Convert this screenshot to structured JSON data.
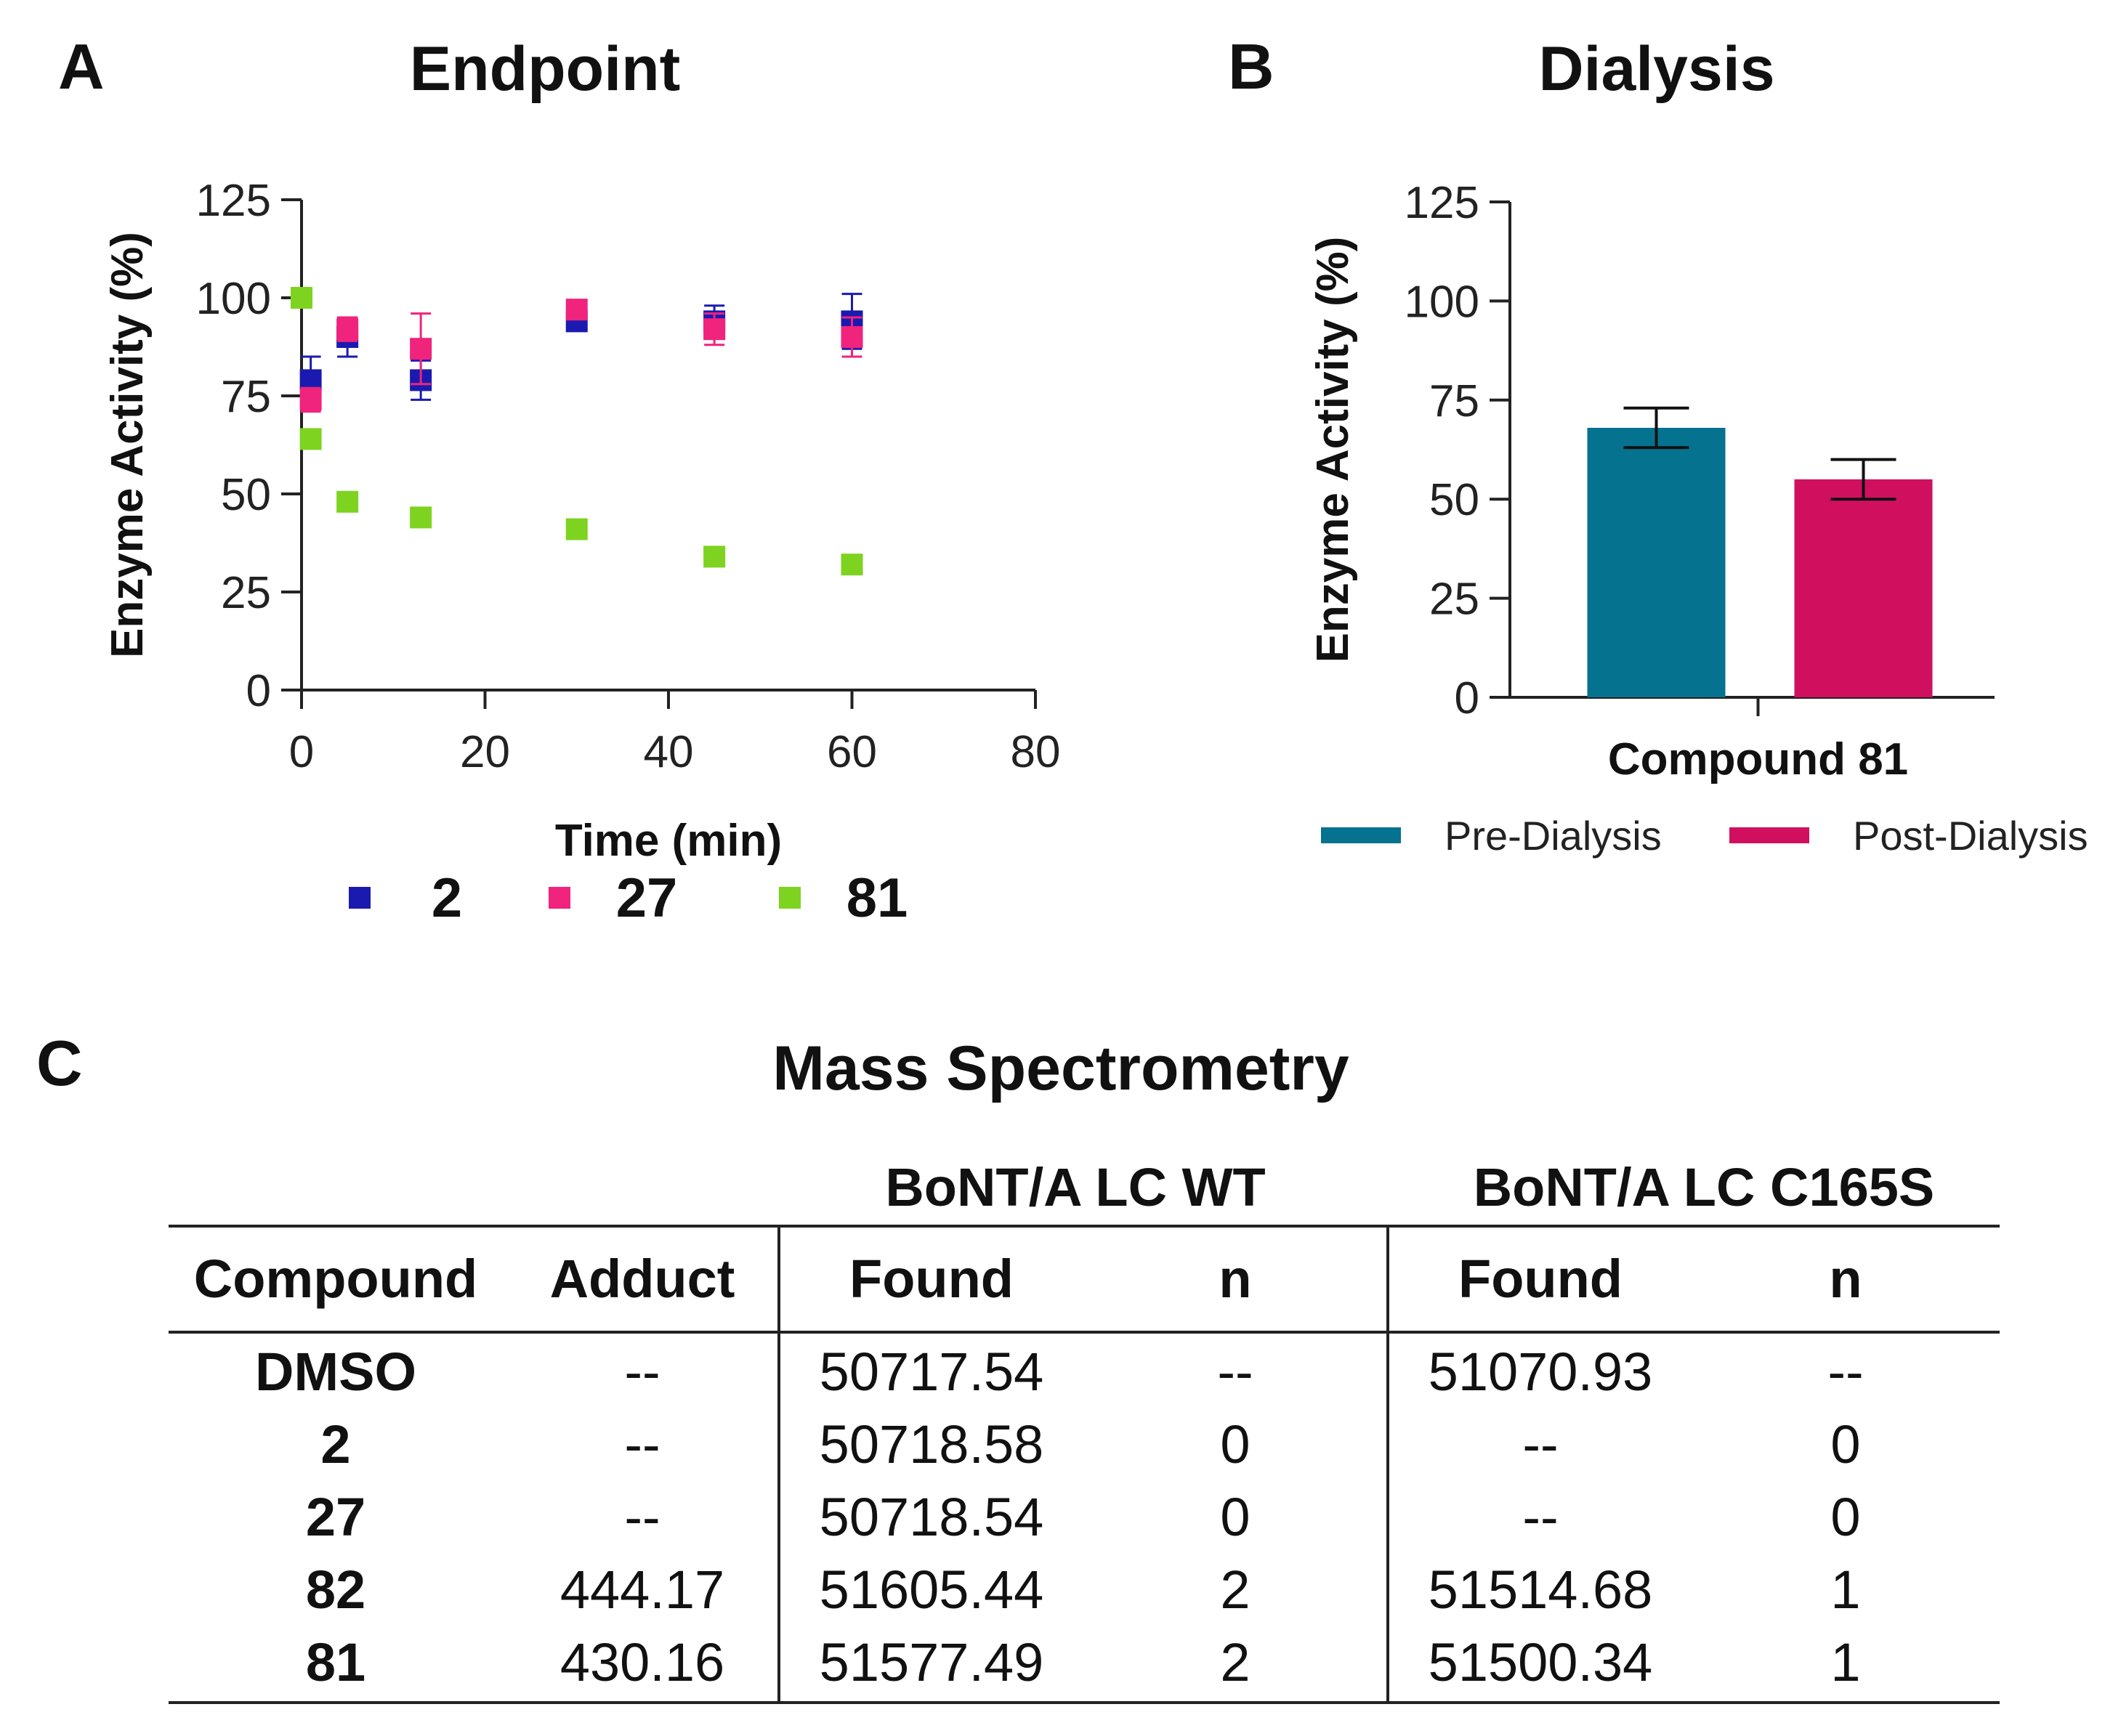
{
  "panels": {
    "a": {
      "letter": "A",
      "title": "Endpoint"
    },
    "b": {
      "letter": "B",
      "title": "Dialysis"
    },
    "c": {
      "letter": "C",
      "title": "Mass Spectrometry"
    }
  },
  "chart_data": [
    {
      "type": "scatter",
      "title": "Endpoint",
      "xlabel": "Time (min)",
      "ylabel": "Enzyme Activity (%)",
      "xlim": [
        0,
        80
      ],
      "ylim": [
        0,
        125
      ],
      "xticks": [
        "0",
        "20",
        "40",
        "60",
        "80"
      ],
      "yticks": [
        "0",
        "25",
        "50",
        "75",
        "100",
        "125"
      ],
      "legend_position": "bottom",
      "series": [
        {
          "name": "2",
          "color": "#1a1ab0",
          "points": [
            {
              "x": 1,
              "y": 79,
              "err": 6
            },
            {
              "x": 5,
              "y": 90,
              "err": 5
            },
            {
              "x": 13,
              "y": 79,
              "err": 5
            },
            {
              "x": 30,
              "y": 94,
              "err": 2
            },
            {
              "x": 45,
              "y": 94,
              "err": 4
            },
            {
              "x": 60,
              "y": 94,
              "err": 7
            }
          ]
        },
        {
          "name": "27",
          "color": "#f0237d",
          "points": [
            {
              "x": 1,
              "y": 74,
              "err": 3
            },
            {
              "x": 5,
              "y": 92,
              "err": 3
            },
            {
              "x": 13,
              "y": 87,
              "err": 9
            },
            {
              "x": 30,
              "y": 97,
              "err": 2
            },
            {
              "x": 45,
              "y": 92,
              "err": 4
            },
            {
              "x": 60,
              "y": 90,
              "err": 5
            }
          ]
        },
        {
          "name": "81",
          "color": "#7ed321",
          "points": [
            {
              "x": 0,
              "y": 100,
              "err": 0
            },
            {
              "x": 1,
              "y": 64,
              "err": 0
            },
            {
              "x": 5,
              "y": 48,
              "err": 0
            },
            {
              "x": 13,
              "y": 44,
              "err": 0
            },
            {
              "x": 30,
              "y": 41,
              "err": 0
            },
            {
              "x": 45,
              "y": 34,
              "err": 0
            },
            {
              "x": 60,
              "y": 32,
              "err": 0
            }
          ]
        }
      ]
    },
    {
      "type": "bar",
      "title": "Dialysis",
      "xlabel": "Compound 81",
      "ylabel": "Enzyme Activity (%)",
      "ylim": [
        0,
        125
      ],
      "yticks": [
        "0",
        "25",
        "50",
        "75",
        "100",
        "125"
      ],
      "legend_position": "bottom",
      "series": [
        {
          "name": "Pre-Dialysis",
          "value": 68,
          "err": 5,
          "color": "#05728f"
        },
        {
          "name": "Post-Dialysis",
          "value": 55,
          "err": 5,
          "color": "#d0105e"
        }
      ]
    }
  ],
  "table": {
    "group_headers": [
      "BoNT/A LC WT",
      "BoNT/A LC C165S"
    ],
    "columns": [
      "Compound",
      "Adduct",
      "Found",
      "n",
      "Found",
      "n"
    ],
    "rows": [
      [
        "DMSO",
        "--",
        "50717.54",
        "--",
        "51070.93",
        "--"
      ],
      [
        "2",
        "--",
        "50718.58",
        "0",
        "--",
        "0"
      ],
      [
        "27",
        "--",
        "50718.54",
        "0",
        "--",
        "0"
      ],
      [
        "82",
        "444.17",
        "51605.44",
        "2",
        "51514.68",
        "1"
      ],
      [
        "81",
        "430.16",
        "51577.49",
        "2",
        "51500.34",
        "1"
      ]
    ]
  }
}
